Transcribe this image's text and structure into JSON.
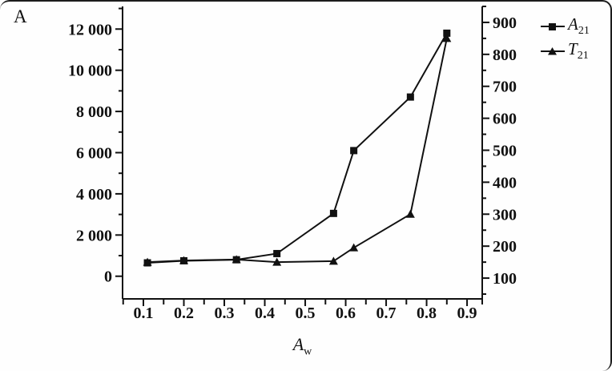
{
  "panel_label": "A",
  "colors": {
    "line": "#111111",
    "marker": "#111111",
    "frame": "#1c1c1c",
    "background": "#fefefe"
  },
  "chart_data": {
    "type": "line",
    "title": "",
    "xlabel_main": "A",
    "xlabel_sub": "w",
    "grid": false,
    "legend_position": "top-right-outside",
    "x": [
      0.11,
      0.2,
      0.33,
      0.43,
      0.57,
      0.62,
      0.76,
      0.85
    ],
    "series": [
      {
        "name": "A21",
        "label_main": "A",
        "label_sub": "21",
        "marker": "square",
        "axis": "left",
        "values": [
          650,
          750,
          800,
          1100,
          3050,
          6100,
          8700,
          11800
        ]
      },
      {
        "name": "T21",
        "label_main": "T",
        "label_sub": "21",
        "marker": "triangle",
        "axis": "right",
        "values": [
          150,
          155,
          158,
          150,
          153,
          195,
          300,
          850
        ]
      }
    ],
    "x_axis": {
      "lim": [
        0.0485,
        0.9375
      ],
      "ticks": [
        0.1,
        0.2,
        0.3,
        0.4,
        0.5,
        0.6,
        0.7,
        0.8,
        0.9
      ],
      "tick_labels": [
        "0.1",
        "0.2",
        "0.3",
        "0.4",
        "0.5",
        "0.6",
        "0.7",
        "0.8",
        "0.9"
      ],
      "minor_ticks": [
        0.05,
        0.15,
        0.25,
        0.35,
        0.45,
        0.55,
        0.65,
        0.75,
        0.85,
        0.95
      ]
    },
    "left_axis": {
      "lim": [
        -1100,
        13100
      ],
      "ticks": [
        0,
        2000,
        4000,
        6000,
        8000,
        10000,
        12000
      ],
      "tick_labels": [
        "0",
        "2 000",
        "4 000",
        "6 000",
        "8 000",
        "10 000",
        "12 000"
      ],
      "minor_ticks": [
        1000,
        3000,
        5000,
        7000,
        9000,
        11000,
        13000
      ]
    },
    "right_axis": {
      "lim": [
        35,
        950
      ],
      "ticks": [
        100,
        200,
        300,
        400,
        500,
        600,
        700,
        800,
        900
      ],
      "tick_labels": [
        "100",
        "200",
        "300",
        "400",
        "500",
        "600",
        "700",
        "800",
        "900"
      ],
      "minor_ticks": [
        50,
        150,
        250,
        350,
        450,
        550,
        650,
        750,
        850,
        950
      ]
    }
  }
}
